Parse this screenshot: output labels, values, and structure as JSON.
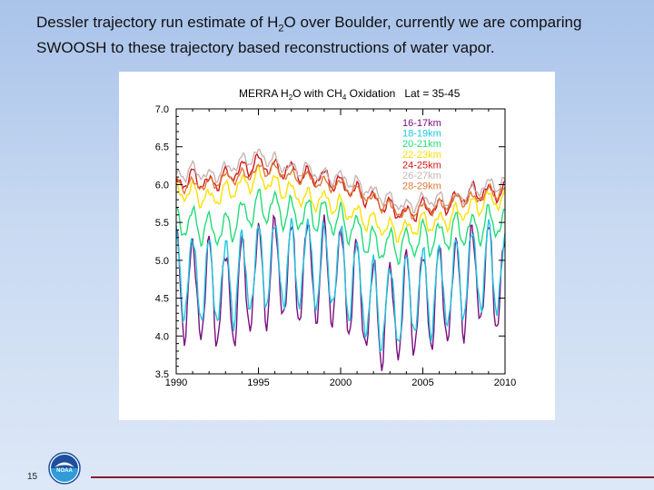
{
  "slide": {
    "title_part1": "Dessler trajectory run estimate of H",
    "title_sub": "2",
    "title_part2": "O over Boulder, currently we are comparing SWOOSH to these trajectory based reconstructions of water vapor.",
    "page_number": "15",
    "logo_text": "NOAA"
  },
  "chart_data": {
    "type": "line",
    "title_part1": "MERRA H",
    "title_sub1": "2",
    "title_part2": "O with CH",
    "title_sub2": "4",
    "title_part3": " Oxidation   Lat = 35-45",
    "xlim": [
      1990,
      2010
    ],
    "ylim": [
      3.5,
      7.0
    ],
    "x_ticks": [
      "1990",
      "1995",
      "2000",
      "2005",
      "2010"
    ],
    "y_ticks": [
      "3.5",
      "4.0",
      "4.5",
      "5.0",
      "5.5",
      "6.0",
      "6.5",
      "7.0"
    ],
    "series": [
      {
        "name": "16-17km",
        "color": "#7a1080",
        "baseline": [
          [
            1990,
            4.7
          ],
          [
            1991,
            4.6
          ],
          [
            1992,
            4.6
          ],
          [
            1993,
            4.5
          ],
          [
            1994,
            4.6
          ],
          [
            1995,
            4.8
          ],
          [
            1996,
            4.9
          ],
          [
            1997,
            4.8
          ],
          [
            1998,
            4.9
          ],
          [
            1999,
            4.8
          ],
          [
            2000,
            4.8
          ],
          [
            2001,
            4.6
          ],
          [
            2002,
            4.3
          ],
          [
            2003,
            4.3
          ],
          [
            2004,
            4.4
          ],
          [
            2005,
            4.5
          ],
          [
            2006,
            4.5
          ],
          [
            2007,
            4.6
          ],
          [
            2008,
            4.8
          ],
          [
            2009,
            4.8
          ],
          [
            2010,
            4.7
          ]
        ],
        "amplitude": 0.65
      },
      {
        "name": "18-19km",
        "color": "#1ec8dc",
        "baseline": [
          [
            1990,
            4.8
          ],
          [
            1991,
            4.8
          ],
          [
            1992,
            4.7
          ],
          [
            1993,
            4.7
          ],
          [
            1994,
            4.8
          ],
          [
            1995,
            4.9
          ],
          [
            1996,
            5.0
          ],
          [
            1997,
            4.9
          ],
          [
            1998,
            5.0
          ],
          [
            1999,
            4.9
          ],
          [
            2000,
            4.9
          ],
          [
            2001,
            4.7
          ],
          [
            2002,
            4.4
          ],
          [
            2003,
            4.4
          ],
          [
            2004,
            4.5
          ],
          [
            2005,
            4.6
          ],
          [
            2006,
            4.6
          ],
          [
            2007,
            4.7
          ],
          [
            2008,
            4.9
          ],
          [
            2009,
            4.9
          ],
          [
            2010,
            4.8
          ]
        ],
        "amplitude": 0.55
      },
      {
        "name": "20-21km",
        "color": "#22dc78",
        "baseline": [
          [
            1990,
            5.5
          ],
          [
            1991,
            5.5
          ],
          [
            1992,
            5.4
          ],
          [
            1993,
            5.4
          ],
          [
            1994,
            5.6
          ],
          [
            1995,
            5.7
          ],
          [
            1996,
            5.7
          ],
          [
            1997,
            5.6
          ],
          [
            1998,
            5.6
          ],
          [
            1999,
            5.6
          ],
          [
            2000,
            5.5
          ],
          [
            2001,
            5.4
          ],
          [
            2002,
            5.2
          ],
          [
            2003,
            5.2
          ],
          [
            2004,
            5.2
          ],
          [
            2005,
            5.3
          ],
          [
            2006,
            5.3
          ],
          [
            2007,
            5.4
          ],
          [
            2008,
            5.4
          ],
          [
            2009,
            5.5
          ],
          [
            2010,
            5.5
          ]
        ],
        "amplitude": 0.2
      },
      {
        "name": "22-23km",
        "color": "#ffe000",
        "baseline": [
          [
            1990,
            5.9
          ],
          [
            1991,
            5.9
          ],
          [
            1992,
            5.8
          ],
          [
            1993,
            5.9
          ],
          [
            1994,
            6.0
          ],
          [
            1995,
            6.1
          ],
          [
            1996,
            6.0
          ],
          [
            1997,
            5.9
          ],
          [
            1998,
            5.8
          ],
          [
            1999,
            5.8
          ],
          [
            2000,
            5.7
          ],
          [
            2001,
            5.6
          ],
          [
            2002,
            5.5
          ],
          [
            2003,
            5.4
          ],
          [
            2004,
            5.4
          ],
          [
            2005,
            5.5
          ],
          [
            2006,
            5.5
          ],
          [
            2007,
            5.6
          ],
          [
            2008,
            5.7
          ],
          [
            2009,
            5.8
          ],
          [
            2010,
            5.8
          ]
        ],
        "amplitude": 0.12
      },
      {
        "name": "24-25km",
        "color": "#d0181c",
        "baseline": [
          [
            1990,
            6.0
          ],
          [
            1991,
            6.1
          ],
          [
            1992,
            6.0
          ],
          [
            1993,
            6.1
          ],
          [
            1994,
            6.2
          ],
          [
            1995,
            6.3
          ],
          [
            1996,
            6.2
          ],
          [
            1997,
            6.2
          ],
          [
            1998,
            6.1
          ],
          [
            1999,
            6.1
          ],
          [
            2000,
            6.0
          ],
          [
            2001,
            5.9
          ],
          [
            2002,
            5.8
          ],
          [
            2003,
            5.7
          ],
          [
            2004,
            5.6
          ],
          [
            2005,
            5.7
          ],
          [
            2006,
            5.7
          ],
          [
            2007,
            5.8
          ],
          [
            2008,
            5.9
          ],
          [
            2009,
            5.9
          ],
          [
            2010,
            5.9
          ]
        ],
        "amplitude": 0.1
      },
      {
        "name": "26-27km",
        "color": "#c8b4b4",
        "baseline": [
          [
            1990,
            6.1
          ],
          [
            1991,
            6.2
          ],
          [
            1992,
            6.1
          ],
          [
            1993,
            6.2
          ],
          [
            1994,
            6.3
          ],
          [
            1995,
            6.4
          ],
          [
            1996,
            6.3
          ],
          [
            1997,
            6.2
          ],
          [
            1998,
            6.2
          ],
          [
            1999,
            6.1
          ],
          [
            2000,
            6.1
          ],
          [
            2001,
            6.0
          ],
          [
            2002,
            5.9
          ],
          [
            2003,
            5.8
          ],
          [
            2004,
            5.7
          ],
          [
            2005,
            5.8
          ],
          [
            2006,
            5.8
          ],
          [
            2007,
            5.8
          ],
          [
            2008,
            5.9
          ],
          [
            2009,
            6.0
          ],
          [
            2010,
            6.0
          ]
        ],
        "amplitude": 0.08
      },
      {
        "name": "28-29km",
        "color": "#e07838",
        "baseline": [
          [
            1990,
            6.0
          ],
          [
            1991,
            6.0
          ],
          [
            1992,
            6.0
          ],
          [
            1993,
            6.1
          ],
          [
            1994,
            6.1
          ],
          [
            1995,
            6.2
          ],
          [
            1996,
            6.2
          ],
          [
            1997,
            6.1
          ],
          [
            1998,
            6.1
          ],
          [
            1999,
            6.0
          ],
          [
            2000,
            6.0
          ],
          [
            2001,
            5.9
          ],
          [
            2002,
            5.8
          ],
          [
            2003,
            5.7
          ],
          [
            2004,
            5.6
          ],
          [
            2005,
            5.7
          ],
          [
            2006,
            5.7
          ],
          [
            2007,
            5.8
          ],
          [
            2008,
            5.8
          ],
          [
            2009,
            5.9
          ],
          [
            2010,
            5.9
          ]
        ],
        "amplitude": 0.07
      }
    ]
  }
}
